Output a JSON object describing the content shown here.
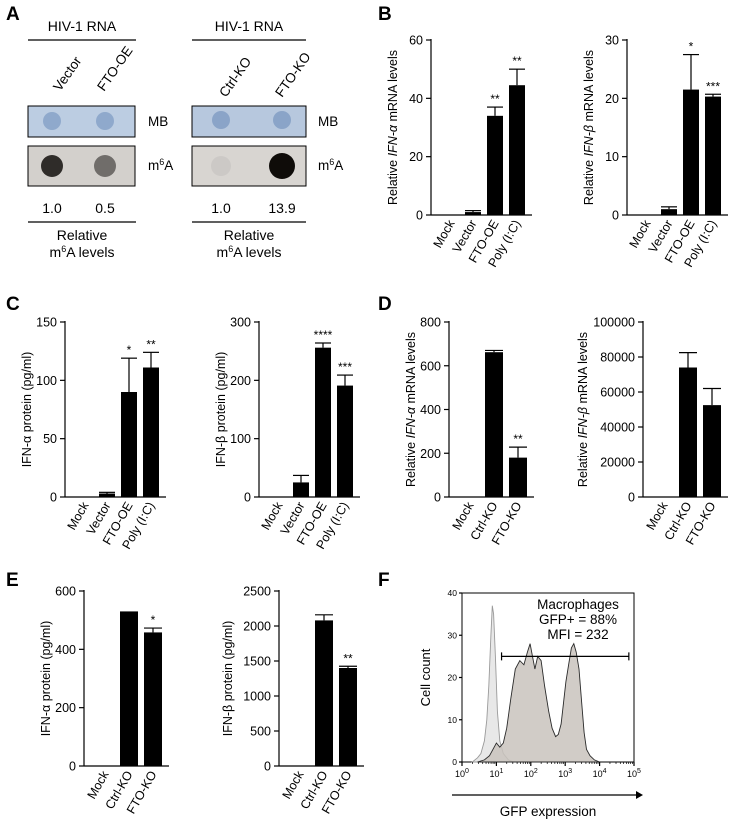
{
  "panels": {
    "A": {
      "letter": "A",
      "left": {
        "header": "HIV-1 RNA",
        "lanes": [
          "Vector",
          "FTO-OE"
        ],
        "blot_labels": [
          "MB",
          "m6A"
        ],
        "values": [
          "1.0",
          "0.5"
        ],
        "caption_line1": "Relative",
        "caption_line2": "m6A levels",
        "m6a_intensity": [
          0.85,
          0.55
        ]
      },
      "right": {
        "header": "HIV-1 RNA",
        "lanes": [
          "Ctrl-KO",
          "FTO-KO"
        ],
        "blot_labels": [
          "MB",
          "m6A"
        ],
        "values": [
          "1.0",
          "13.9"
        ],
        "caption_line1": "Relative",
        "caption_line2": "m6A levels",
        "m6a_intensity": [
          0.12,
          1.0
        ]
      }
    },
    "B": {
      "letter": "B"
    },
    "C": {
      "letter": "C"
    },
    "D": {
      "letter": "D"
    },
    "E": {
      "letter": "E"
    },
    "F": {
      "letter": "F"
    }
  },
  "chart_data": [
    {
      "id": "B1",
      "type": "bar",
      "categories": [
        "Mock",
        "Vector",
        "FTO-OE",
        "Poly (I:C)"
      ],
      "values": [
        0,
        1,
        34,
        44.5
      ],
      "errors": [
        0,
        0.5,
        3,
        5.5
      ],
      "significance": [
        "",
        "",
        "**",
        "**"
      ],
      "ylabel_parts": [
        "Relative ",
        "IFN-α",
        " mRNA levels"
      ],
      "ylim": [
        0,
        60
      ],
      "yticks": [
        0,
        20,
        40,
        60
      ]
    },
    {
      "id": "B2",
      "type": "bar",
      "categories": [
        "Mock",
        "Vector",
        "FTO-OE",
        "Poly (I:C)"
      ],
      "values": [
        0,
        1,
        21.5,
        20.3
      ],
      "errors": [
        0,
        0.4,
        6,
        0.4
      ],
      "significance": [
        "",
        "",
        "*",
        "***"
      ],
      "ylabel_parts": [
        "Relative ",
        "IFN-β",
        " mRNA levels"
      ],
      "ylim": [
        0,
        30
      ],
      "yticks": [
        0,
        10,
        20,
        30
      ]
    },
    {
      "id": "C1",
      "type": "bar",
      "categories": [
        "Mock",
        "Vector",
        "FTO-OE",
        "Poly (I:C)"
      ],
      "values": [
        0,
        3,
        90,
        111
      ],
      "errors": [
        0,
        1,
        29,
        13
      ],
      "significance": [
        "",
        "",
        "*",
        "**"
      ],
      "ylabel_parts": [
        "IFN-α protein (pg/ml)"
      ],
      "ylim": [
        0,
        150
      ],
      "yticks": [
        0,
        50,
        100,
        150
      ]
    },
    {
      "id": "C2",
      "type": "bar",
      "categories": [
        "Mock",
        "Vector",
        "FTO-OE",
        "Poly (I:C)"
      ],
      "values": [
        0,
        25,
        256,
        191
      ],
      "errors": [
        0,
        12,
        8,
        18
      ],
      "significance": [
        "",
        "",
        "****",
        "***"
      ],
      "ylabel_parts": [
        "IFN-β protein (pg/ml)"
      ],
      "ylim": [
        0,
        300
      ],
      "yticks": [
        0,
        100,
        200,
        300
      ]
    },
    {
      "id": "D1",
      "type": "bar",
      "categories": [
        "Mock",
        "Ctrl-KO",
        "FTO-KO"
      ],
      "values": [
        0,
        662,
        180
      ],
      "errors": [
        0,
        8,
        48
      ],
      "significance": [
        "",
        "",
        "**"
      ],
      "ylabel_parts": [
        "Relative ",
        "IFN-α",
        " mRNA levels"
      ],
      "ylim": [
        0,
        800
      ],
      "yticks": [
        0,
        200,
        400,
        600,
        800
      ]
    },
    {
      "id": "D2",
      "type": "bar",
      "categories": [
        "Mock",
        "Ctrl-KO",
        "FTO-KO"
      ],
      "values": [
        0,
        74000,
        52500
      ],
      "errors": [
        0,
        8500,
        9500
      ],
      "significance": [
        "",
        "",
        ""
      ],
      "ylabel_parts": [
        "Relative ",
        "IFN-β",
        " mRNA levels"
      ],
      "ylim": [
        0,
        100000
      ],
      "yticks": [
        0,
        20000,
        40000,
        60000,
        80000,
        100000
      ]
    },
    {
      "id": "E1",
      "type": "bar",
      "categories": [
        "Mock",
        "Ctrl-KO",
        "FTO-KO"
      ],
      "values": [
        0,
        530,
        458
      ],
      "errors": [
        0,
        0,
        15
      ],
      "significance": [
        "",
        "",
        "*"
      ],
      "ylabel_parts": [
        "IFN-α protein (pg/ml)"
      ],
      "ylim": [
        0,
        600
      ],
      "yticks": [
        0,
        200,
        400,
        600
      ]
    },
    {
      "id": "E2",
      "type": "bar",
      "categories": [
        "Mock",
        "Ctrl-KO",
        "FTO-KO"
      ],
      "values": [
        0,
        2080,
        1400
      ],
      "errors": [
        0,
        80,
        25
      ],
      "significance": [
        "",
        "",
        "**"
      ],
      "ylabel_parts": [
        "IFN-β protein (pg/ml)"
      ],
      "ylim": [
        0,
        2500
      ],
      "yticks": [
        0,
        500,
        1000,
        1500,
        2000,
        2500
      ]
    },
    {
      "id": "F",
      "type": "area",
      "title_lines": [
        "Macrophages",
        "GFP+ = 88%",
        "MFI = 232"
      ],
      "ylabel": "Cell count",
      "xlabel": "GFP expression",
      "ylim": [
        0,
        40
      ],
      "yticks": [
        0,
        10,
        20,
        30,
        40
      ],
      "xscale": "log",
      "xlim_exp": [
        0,
        5
      ],
      "xtick_base": "10",
      "xtick_exps": [
        "0",
        "1",
        "2",
        "3",
        "4",
        "5"
      ],
      "gate_log_range": [
        1.15,
        4.85
      ],
      "gate_y": 25,
      "series": [
        {
          "role": "control",
          "color": "#e6e6e6",
          "x_log": [
            0.3,
            0.45,
            0.55,
            0.65,
            0.72,
            0.78,
            0.84,
            0.88,
            0.92,
            0.97,
            1.03,
            1.1,
            1.2,
            1.35,
            1.5
          ],
          "y": [
            0,
            1,
            2,
            5,
            10,
            18,
            30,
            37,
            35,
            25,
            12,
            5,
            2,
            0.5,
            0
          ]
        },
        {
          "role": "sample",
          "color": "#c9c3bd",
          "x_log": [
            0.45,
            0.65,
            0.8,
            0.9,
            1.0,
            1.1,
            1.2,
            1.3,
            1.42,
            1.55,
            1.68,
            1.8,
            1.9,
            1.98,
            2.05,
            2.12,
            2.2,
            2.3,
            2.4,
            2.52,
            2.62,
            2.72,
            2.8,
            2.88,
            2.95,
            3.02,
            3.1,
            3.18,
            3.25,
            3.32,
            3.4,
            3.48,
            3.55,
            3.62,
            3.72,
            3.85,
            4.0
          ],
          "y": [
            0,
            0.5,
            1.5,
            3,
            4.5,
            3.5,
            4.5,
            8,
            15,
            22,
            24,
            23,
            26,
            28,
            25,
            22,
            25,
            24,
            18,
            12,
            8,
            6,
            6.5,
            9,
            14,
            19,
            23,
            27,
            28,
            26,
            22,
            14,
            7,
            3,
            1.5,
            0.5,
            0
          ]
        }
      ]
    }
  ]
}
